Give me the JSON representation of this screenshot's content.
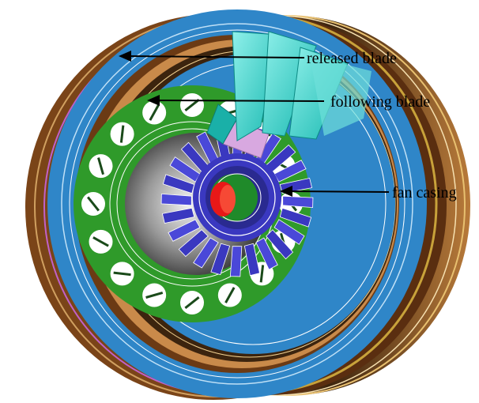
{
  "labels": {
    "released": "released blade",
    "following": "following blade",
    "casing": "fan casing"
  },
  "colors": {
    "outer_ring": "#2f86c8",
    "outer_ring_light": "#6fb2e2",
    "wrap_brown": "#8b4a1c",
    "wrap_tan": "#c98a4a",
    "wrap_gold": "#c8a23a",
    "wrap_magenta": "#c060c8",
    "disk_green": "#2f9a2a",
    "hub_dark": "#2a2a2a",
    "blade_blue": "#3a38c0",
    "released_blade": "#40d8d0",
    "following_blade_pink": "#d8a8e0",
    "hub_red": "#e81818",
    "arrow": "#000000"
  },
  "disk_holes": 16,
  "rotor_blades": 24,
  "released_blades": 3
}
